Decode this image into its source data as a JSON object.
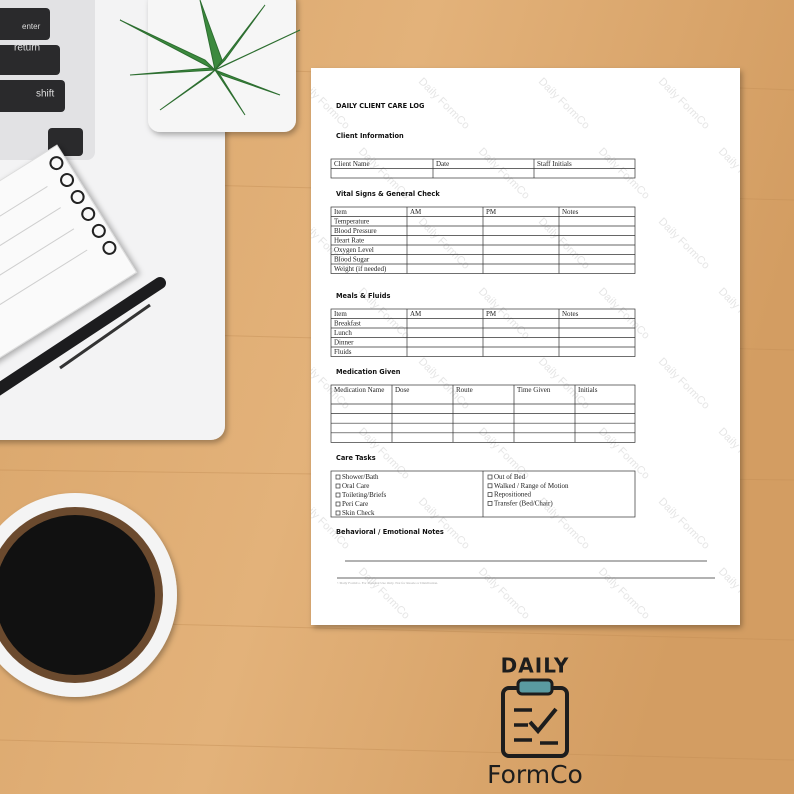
{
  "background": {
    "keys": [
      "enter",
      "return",
      "shift"
    ]
  },
  "document": {
    "title": "DAILY CLIENT CARE LOG",
    "watermark": "Daily FormCo",
    "client_information": {
      "heading": "Client Information",
      "header": [
        "Client Name",
        "Date",
        "Staff Initials"
      ]
    },
    "vital_signs": {
      "heading": "Vital Signs & General Check",
      "header": [
        "Item",
        "AM",
        "PM",
        "Notes"
      ],
      "rows": [
        "Temperature",
        "Blood Pressure",
        "Heart Rate",
        "Oxygen Level",
        "Blood Sugar",
        "Weight (if needed)"
      ]
    },
    "meals_fluids": {
      "heading": "Meals & Fluids",
      "header": [
        "Item",
        "AM",
        "PM",
        "Notes"
      ],
      "rows": [
        "Breakfast",
        "Lunch",
        "Dinner",
        "Fluids"
      ]
    },
    "medication_given": {
      "heading": "Medication Given",
      "header": [
        "Medication Name",
        "Dose",
        "Route",
        "Time Given",
        "Initials"
      ]
    },
    "care_tasks": {
      "heading": "Care Tasks",
      "left": [
        "Shower/Bath",
        "Oral Care",
        "Toileting/Briefs",
        "Peri Care",
        "Skin Check"
      ],
      "right": [
        "Out of Bed",
        "Walked / Range of Motion",
        "Repositioned",
        "Transfer (Bed/Chair)"
      ]
    },
    "behavioral_notes": {
      "heading": "Behavioral / Emotional Notes"
    },
    "footer_note": "©Daily FormCo. For Personal Use Only. Not for Resale or Distribution."
  },
  "logo": {
    "top": "DAILY",
    "bottom": "FormCo"
  }
}
